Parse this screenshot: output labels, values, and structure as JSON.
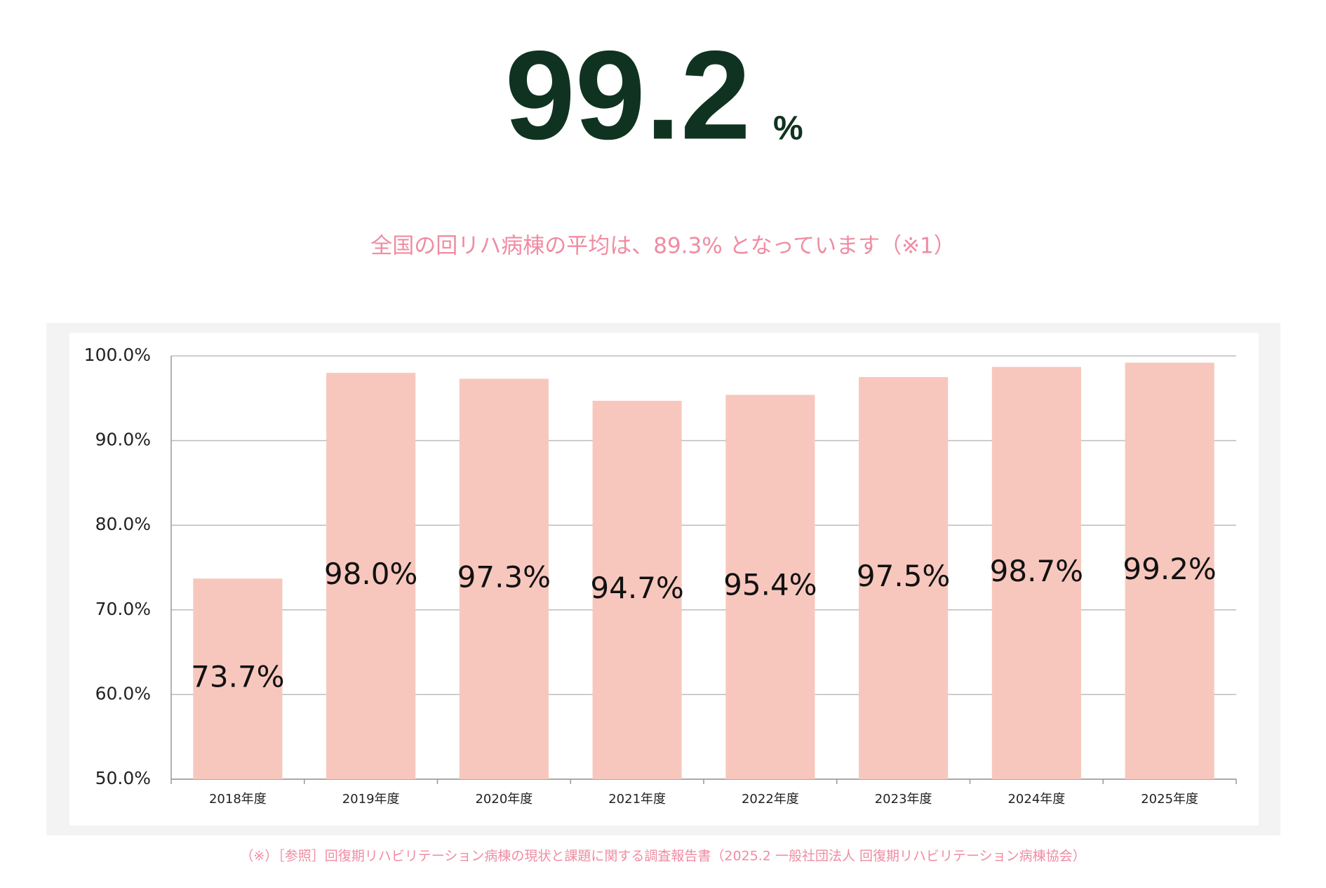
{
  "headline": {
    "value": "99.2",
    "unit": "%"
  },
  "subtitle": "全国の回リハ病棟の平均は、89.3% となっています（※1）",
  "chart_data": {
    "type": "bar",
    "categories": [
      "2018年度",
      "2019年度",
      "2020年度",
      "2021年度",
      "2022年度",
      "2023年度",
      "2024年度",
      "2025年度"
    ],
    "values": [
      73.7,
      98.0,
      97.3,
      94.7,
      95.4,
      97.5,
      98.7,
      99.2
    ],
    "value_labels": [
      "73.7%",
      "98.0%",
      "97.3%",
      "94.7%",
      "95.4%",
      "97.5%",
      "98.7%",
      "99.2%"
    ],
    "color": "#f7c7bd",
    "ylim": [
      50,
      100
    ],
    "yticks": [
      {
        "value": 50,
        "label": "50.0%"
      },
      {
        "value": 60,
        "label": "60.0%"
      },
      {
        "value": 70,
        "label": "70.0%"
      },
      {
        "value": 80,
        "label": "80.0%"
      },
      {
        "value": 90,
        "label": "90.0%"
      },
      {
        "value": 100,
        "label": "100.0%"
      }
    ],
    "grid": true
  },
  "footnote": "（※）［参照］回復期リハビリテーション病棟の現状と課題に関する調査報告書（2025.2 一般社団法人 回復期リハビリテーション病棟協会）"
}
